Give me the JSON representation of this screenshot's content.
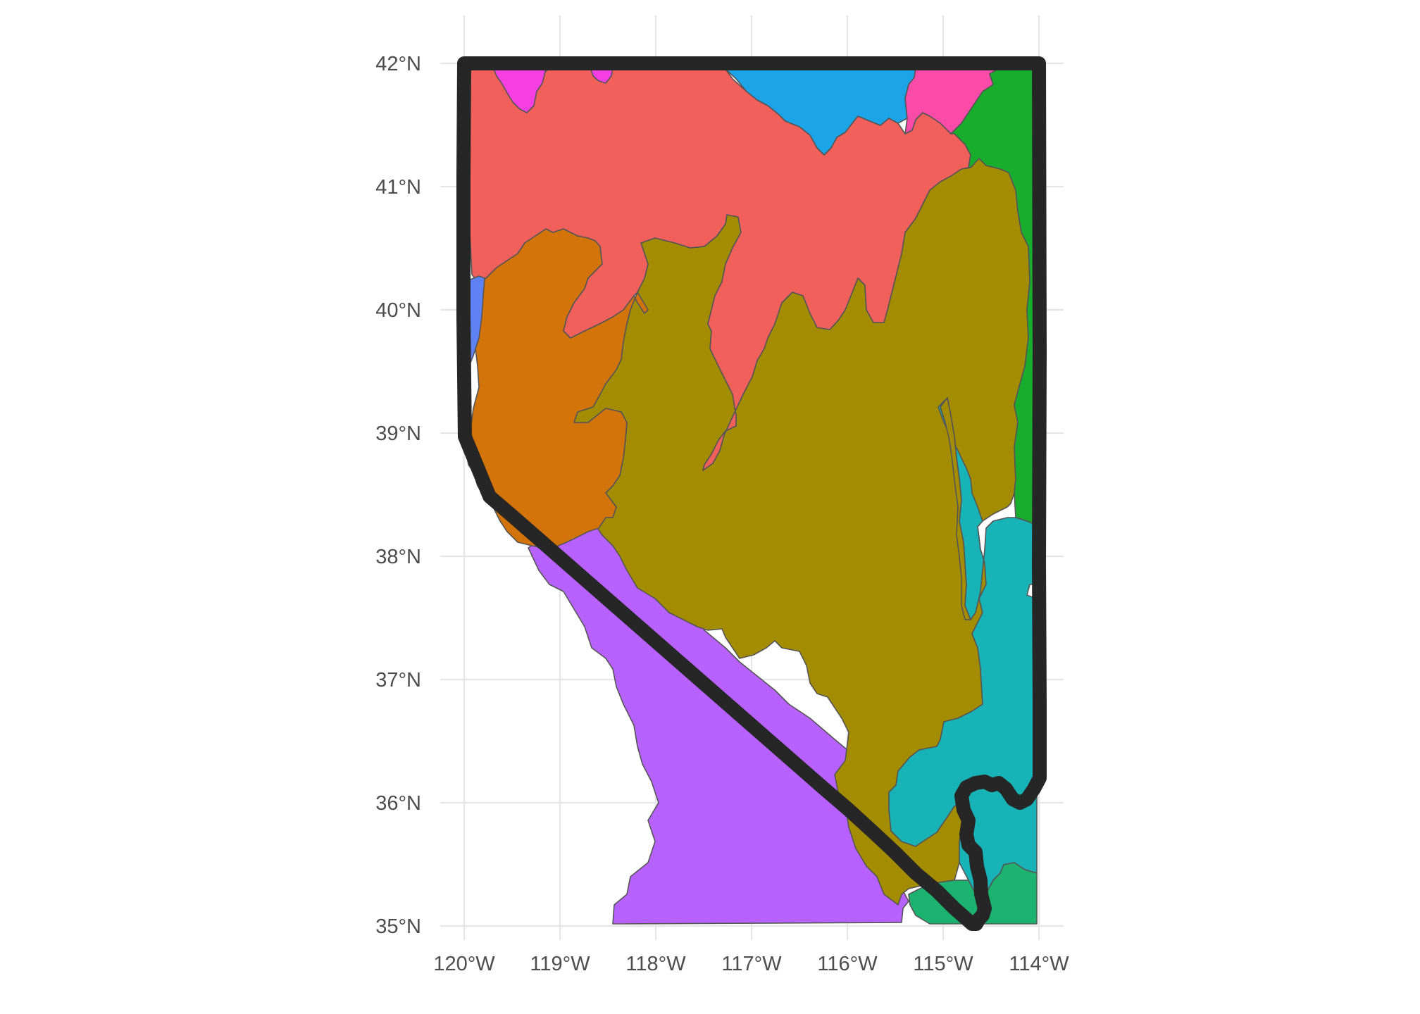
{
  "map": {
    "x_axis_ticks": [
      "120°W",
      "119°W",
      "118°W",
      "117°W",
      "116°W",
      "115°W",
      "114°W"
    ],
    "y_axis_ticks": [
      "42°N",
      "41°N",
      "40°N",
      "39°N",
      "38°N",
      "37°N",
      "36°N",
      "35°N"
    ],
    "x_range_deg": [
      -120,
      -114
    ],
    "y_range_deg": [
      35,
      42
    ],
    "grid": true,
    "outline_color": "#262626",
    "region_colors": {
      "red": "#F2605C",
      "orange": "#D3740A",
      "olive": "#A38C00",
      "purple": "#B762FF",
      "teal": "#18B3B7",
      "green": "#19AD2E",
      "sky_blue": "#1BA5E8",
      "magenta": "#F63FE1",
      "pink": "#FA4BA8",
      "blue": "#5E82F4",
      "sea_green": "#1CB371"
    }
  }
}
